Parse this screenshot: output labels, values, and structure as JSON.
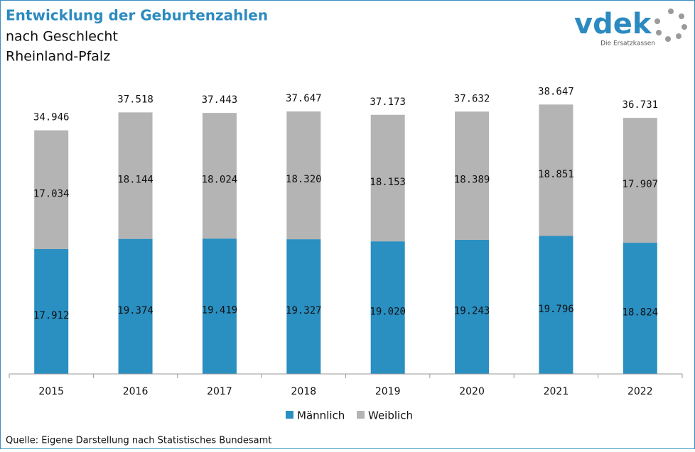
{
  "chart_data": {
    "type": "stacked_bar",
    "title": "Entwicklung der Geburtenzahlen",
    "subtitle": [
      "nach Geschlecht",
      "Rheinland-Pfalz"
    ],
    "categories": [
      "2015",
      "2016",
      "2017",
      "2018",
      "2019",
      "2020",
      "2021",
      "2022"
    ],
    "series": [
      {
        "name": "Männlich",
        "color": "#2a8fc1",
        "values": [
          17912,
          19374,
          19419,
          19327,
          19020,
          19243,
          19796,
          18824
        ],
        "value_labels": [
          "17.912",
          "19.374",
          "19.419",
          "19.327",
          "19.020",
          "19.243",
          "19.796",
          "18.824"
        ]
      },
      {
        "name": "Weiblich",
        "color": "#b4b4b4",
        "values": [
          17034,
          18144,
          18024,
          18320,
          18153,
          18389,
          18851,
          17907
        ],
        "value_labels": [
          "17.034",
          "18.144",
          "18.024",
          "18.320",
          "18.153",
          "18.389",
          "18.851",
          "17.907"
        ]
      }
    ],
    "totals": {
      "values": [
        34946,
        37518,
        37443,
        37647,
        37173,
        37632,
        38647,
        36731
      ],
      "value_labels": [
        "34.946",
        "37.518",
        "37.443",
        "37.647",
        "37.173",
        "37.632",
        "38.647",
        "36.731"
      ]
    },
    "ylim": [
      0,
      40000
    ],
    "legend": "bottom",
    "source": "Quelle: Eigene Darstellung nach Statistisches Bundesamt"
  },
  "logo": {
    "text": "vdek",
    "tagline": "Die Ersatzkassen"
  }
}
